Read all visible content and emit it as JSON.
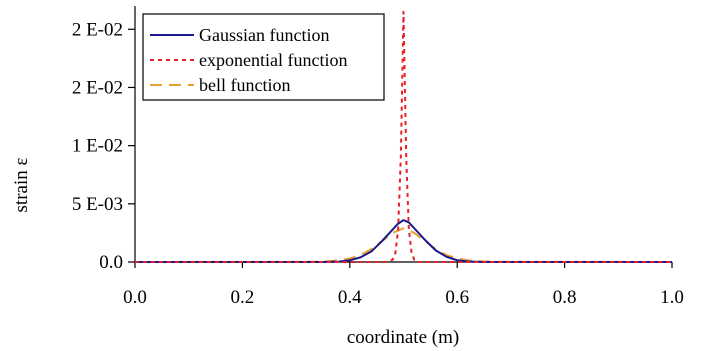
{
  "chart_data": {
    "type": "line",
    "title": "",
    "xlabel": "coordinate (m)",
    "ylabel": "strain ε",
    "xlim": [
      0.0,
      1.0
    ],
    "ylim": [
      0,
      0.022
    ],
    "x_ticks": [
      0.0,
      0.2,
      0.4,
      0.6,
      0.8,
      1.0
    ],
    "x_tick_labels": [
      "0.0",
      "0.2",
      "0.4",
      "0.6",
      "0.8",
      "1.0"
    ],
    "y_ticks": [
      0,
      0.005,
      0.01,
      0.015,
      0.02
    ],
    "y_tick_labels": [
      "0.0",
      "5 E-03",
      "1 E-02",
      "2 E-02",
      "2 E-02"
    ],
    "grid": false,
    "legend_position": "top-left",
    "series": [
      {
        "name": "Gaussian function",
        "color": "#1a1a8c",
        "style": "solid",
        "x": [
          0.0,
          0.35,
          0.38,
          0.4,
          0.42,
          0.44,
          0.46,
          0.48,
          0.49,
          0.5,
          0.51,
          0.52,
          0.54,
          0.56,
          0.58,
          0.6,
          0.62,
          0.65,
          1.0
        ],
        "y": [
          0,
          0,
          3e-05,
          0.00015,
          0.0004,
          0.0009,
          0.0018,
          0.0028,
          0.0033,
          0.0036,
          0.0034,
          0.0029,
          0.0019,
          0.001,
          0.00045,
          0.00015,
          4e-05,
          0,
          0
        ]
      },
      {
        "name": "exponential function",
        "color": "#e8202a",
        "style": "dotted",
        "x": [
          0.0,
          0.47,
          0.48,
          0.485,
          0.49,
          0.495,
          0.5,
          0.505,
          0.51,
          0.515,
          0.52,
          0.53,
          1.0
        ],
        "y": [
          0,
          0,
          0.0002,
          0.0008,
          0.0028,
          0.009,
          0.0215,
          0.009,
          0.0028,
          0.0008,
          0.0002,
          0,
          0
        ]
      },
      {
        "name": "bell function",
        "color": "#e8a030",
        "style": "dashed",
        "x": [
          0.0,
          0.33,
          0.36,
          0.38,
          0.4,
          0.42,
          0.44,
          0.46,
          0.48,
          0.5,
          0.52,
          0.54,
          0.56,
          0.58,
          0.6,
          0.62,
          0.64,
          0.67,
          1.0
        ],
        "y": [
          0,
          2e-05,
          6e-05,
          0.00015,
          0.0003,
          0.0006,
          0.0011,
          0.0018,
          0.0025,
          0.0029,
          0.0025,
          0.0018,
          0.0011,
          0.0006,
          0.0003,
          0.00015,
          6e-05,
          2e-05,
          0
        ]
      }
    ]
  }
}
